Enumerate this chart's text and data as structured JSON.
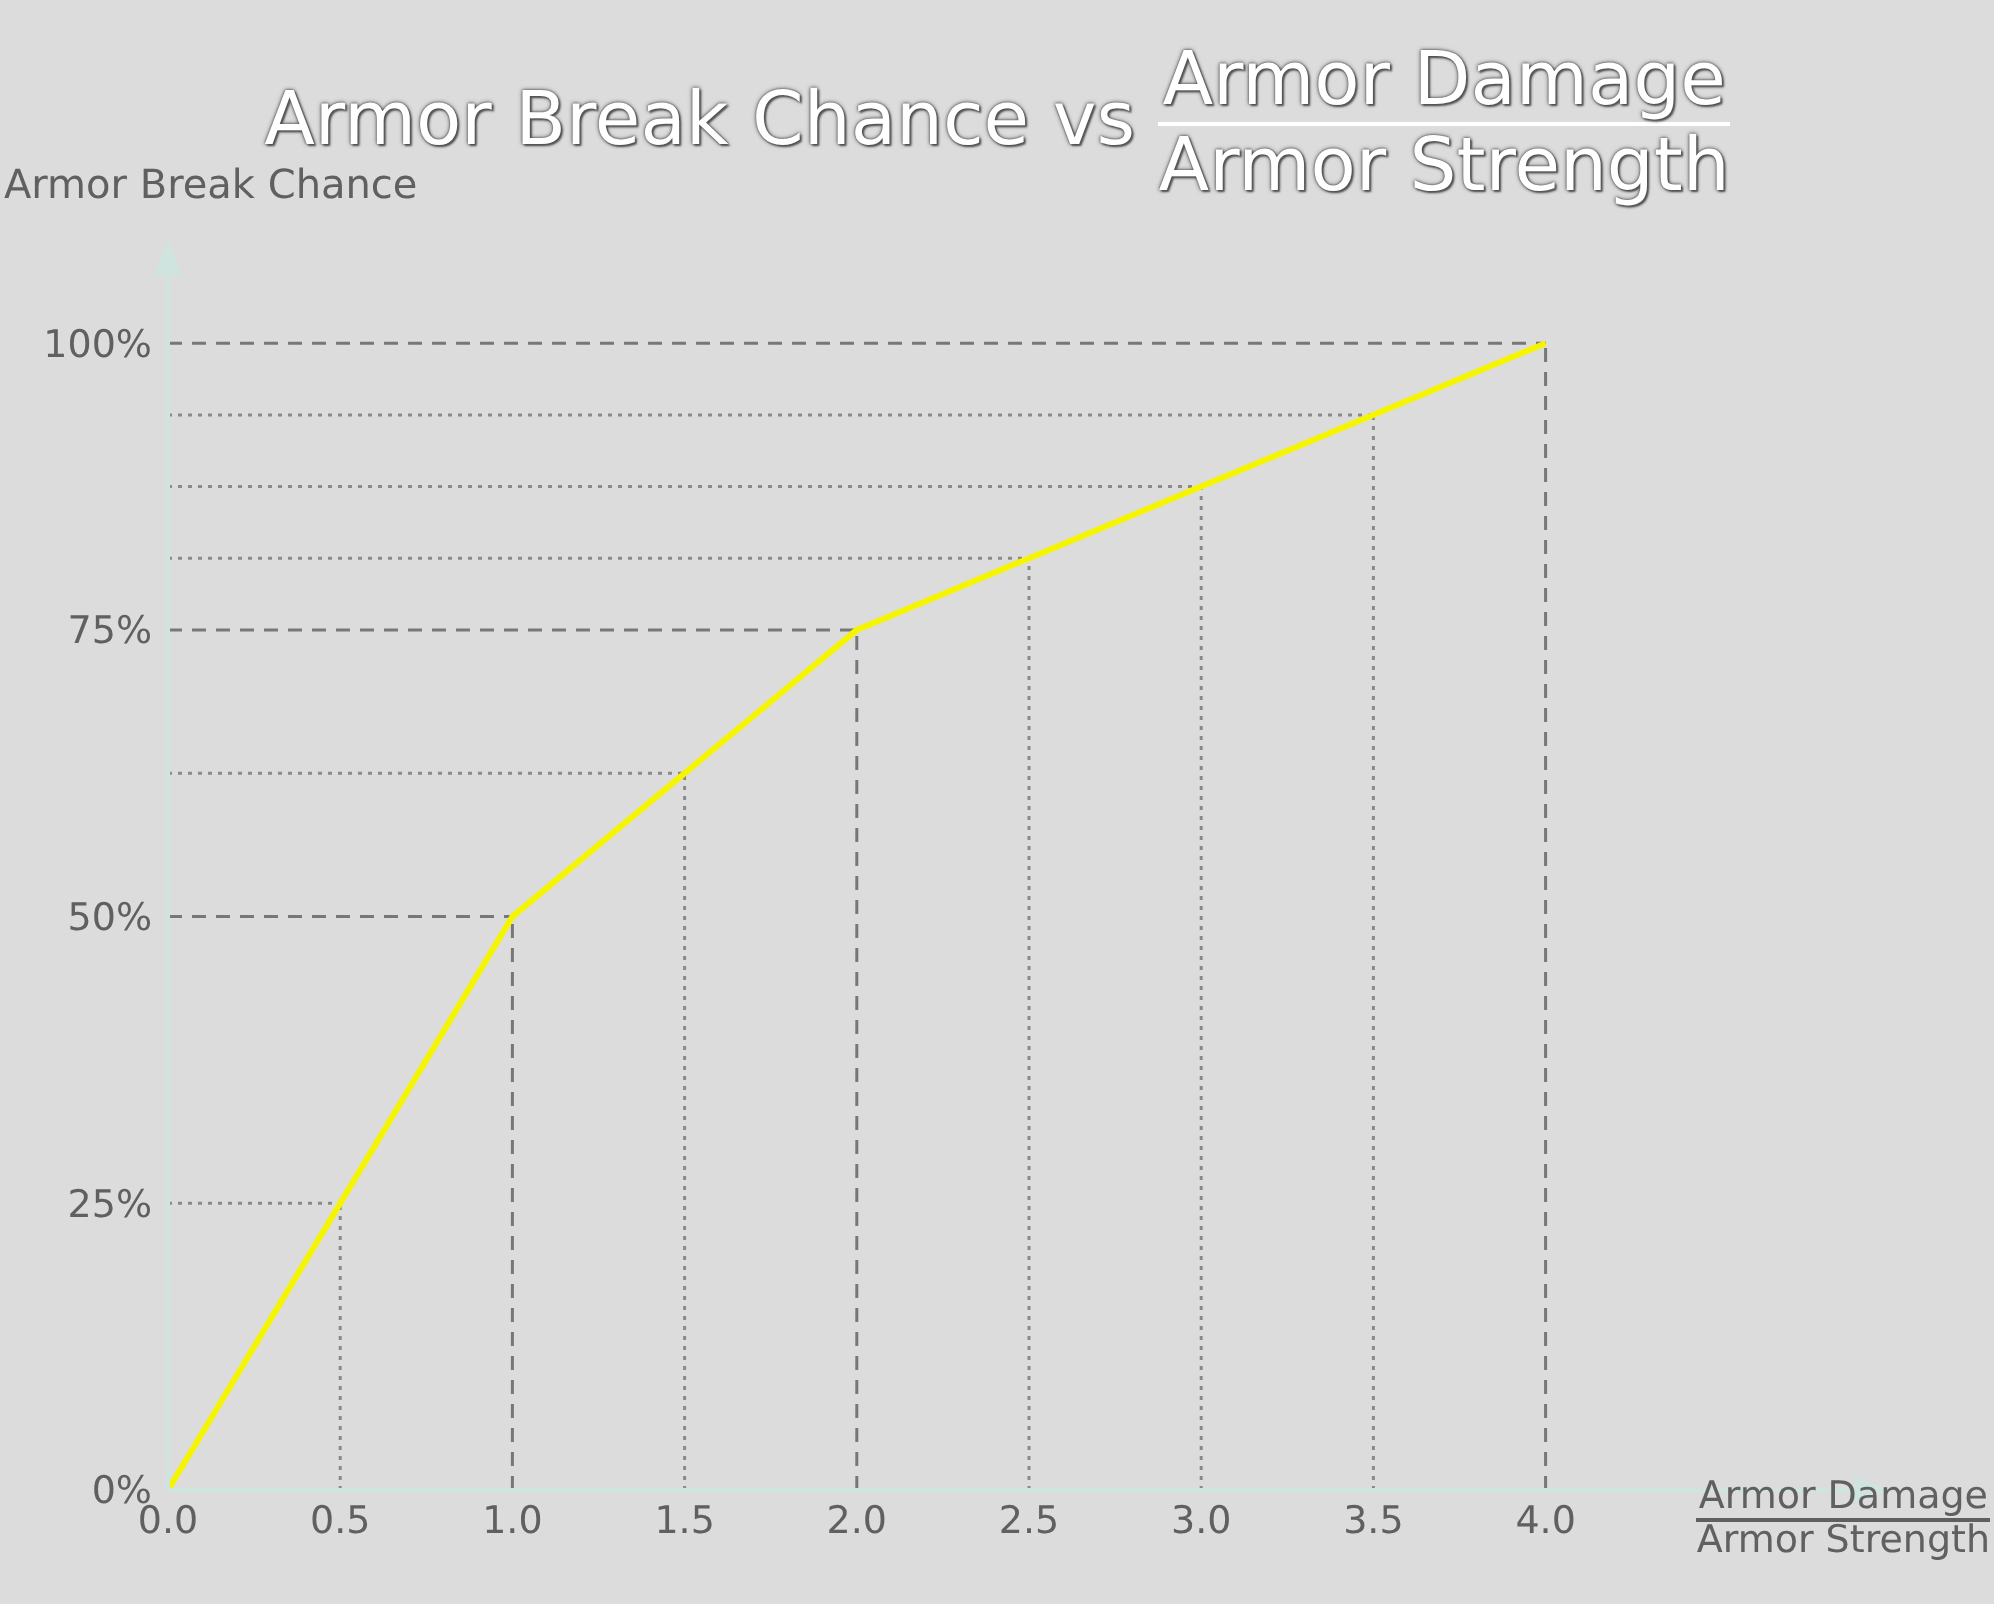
{
  "chart_data": {
    "type": "line",
    "title": "Armor Break Chance vs $^{Armor Damage}$$_{Armor Strength}$",
    "xlabel": "$^{Armor Damage}$$_{Armor Strength}$",
    "ylabel": "Armor Break Chance",
    "series": [
      {
        "color": "#f5f500",
        "x": [
          0,
          1,
          2,
          4
        ],
        "values": [
          0,
          50,
          75,
          100
        ]
      }
    ],
    "xlim": [
      0,
      5
    ],
    "xticks": [
      {
        "value": 0,
        "label": "0.0"
      },
      {
        "value": 0.5,
        "label": "0.5"
      },
      {
        "value": 1,
        "label": "1.0"
      },
      {
        "value": 1.5,
        "label": "1.5"
      },
      {
        "value": 2,
        "label": "2.0"
      },
      {
        "value": 2.5,
        "label": "2.5"
      },
      {
        "value": 3,
        "label": "3.0"
      },
      {
        "value": 3.5,
        "label": "3.5"
      },
      {
        "value": 4,
        "label": "4.0"
      }
    ],
    "ylim": [
      0,
      109
    ],
    "yticks": [
      {
        "value": 0,
        "label": "0%"
      },
      {
        "value": 25,
        "label": "25%"
      },
      {
        "value": 50,
        "label": "50%"
      },
      {
        "value": 75,
        "label": "75%"
      },
      {
        "value": 100,
        "label": "100%"
      }
    ],
    "ref_lines": [
      {
        "axis": "x",
        "value": 0.5,
        "line_style": "dotted"
      },
      {
        "axis": "x",
        "value": 1,
        "line_style": "dashed"
      },
      {
        "axis": "x",
        "value": 1.5,
        "line_style": "dotted"
      },
      {
        "axis": "x",
        "value": 2,
        "line_style": "dashed"
      },
      {
        "axis": "x",
        "value": 2.5,
        "line_style": "dotted"
      },
      {
        "axis": "x",
        "value": 3,
        "line_style": "dotted"
      },
      {
        "axis": "x",
        "value": 3.5,
        "line_style": "dotted"
      },
      {
        "axis": "x",
        "value": 4,
        "line_style": "dashed"
      },
      {
        "axis": "y",
        "value": 25,
        "line_style": "dotted"
      },
      {
        "axis": "y",
        "value": 50,
        "line_style": "dashed"
      },
      {
        "axis": "y",
        "value": 62.5,
        "line_style": "dotted"
      },
      {
        "axis": "y",
        "value": 75,
        "line_style": "dashed"
      },
      {
        "axis": "y",
        "value": 81.25,
        "line_style": "dotted"
      },
      {
        "axis": "y",
        "value": 87.5,
        "line_style": "dotted"
      },
      {
        "axis": "y",
        "value": 93.75,
        "line_style": "dotted"
      },
      {
        "axis": "y",
        "value": 100,
        "line_style": "dashed"
      }
    ],
    "grid": false,
    "legend": false,
    "marker": "none",
    "line_style": "solid"
  }
}
